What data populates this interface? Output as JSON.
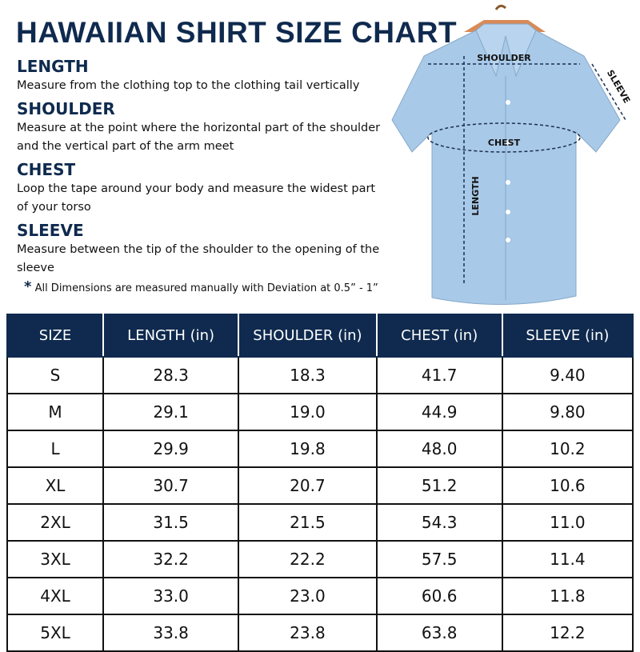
{
  "header": {
    "title": "HAWAIIAN SHIRT SIZE CHART"
  },
  "sections": [
    {
      "heading": "LENGTH",
      "text": "Measure from the clothing top to the clothing tail vertically"
    },
    {
      "heading": "SHOULDER",
      "text": "Measure at the point where the horizontal part of the shoulder and the vertical part of the arm meet"
    },
    {
      "heading": "CHEST",
      "text": "Loop the tape around your body and measure the widest part of your torso"
    },
    {
      "heading": "SLEEVE",
      "text": "Measure between the tip of the shoulder to the opening of the sleeve"
    }
  ],
  "note": {
    "marker": "*",
    "text": "All Dimensions are measured manually with Deviation at 0.5” - 1”"
  },
  "diagram": {
    "shoulder": "SHOULDER",
    "chest": "CHEST",
    "length": "LENGTH",
    "sleeve": "SLEEVE"
  },
  "table": {
    "headers": [
      "SIZE",
      "LENGTH (in)",
      "SHOULDER (in)",
      "CHEST (in)",
      "SLEEVE (in)"
    ],
    "rows": [
      [
        "S",
        "28.3",
        "18.3",
        "41.7",
        "9.40"
      ],
      [
        "M",
        "29.1",
        "19.0",
        "44.9",
        "9.80"
      ],
      [
        "L",
        "29.9",
        "19.8",
        "48.0",
        "10.2"
      ],
      [
        "XL",
        "30.7",
        "20.7",
        "51.2",
        "10.6"
      ],
      [
        "2XL",
        "31.5",
        "21.5",
        "54.3",
        "11.0"
      ],
      [
        "3XL",
        "32.2",
        "22.2",
        "57.5",
        "11.4"
      ],
      [
        "4XL",
        "33.0",
        "23.0",
        "60.6",
        "11.8"
      ],
      [
        "5XL",
        "33.8",
        "23.8",
        "63.8",
        "12.2"
      ]
    ]
  }
}
